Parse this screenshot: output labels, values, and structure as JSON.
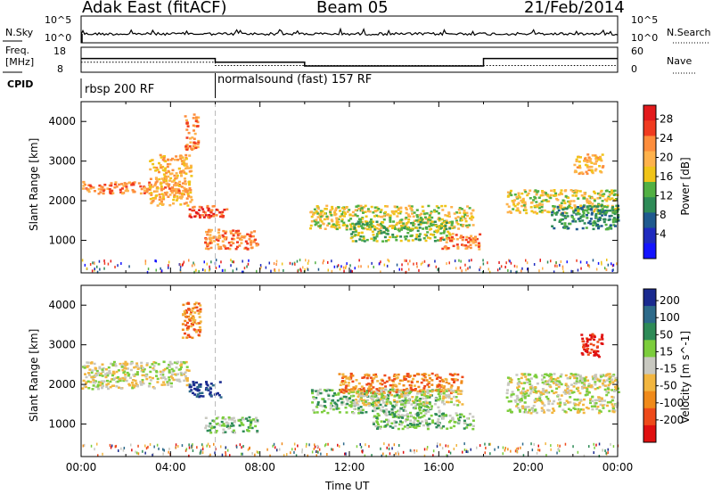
{
  "header": {
    "radar": "Adak East (fitACF)",
    "beam": "Beam 05",
    "date": "21/Feb/2014"
  },
  "top_panels": {
    "nsky_label": "N.Sky",
    "nsky_ticks": [
      "10^5",
      "10^0"
    ],
    "nsky_right_ticks": [
      "10^5",
      "10^0"
    ],
    "nsearch_label": "N.Search",
    "freq_label_line1": "Freq.",
    "freq_label_line2": "[MHz]",
    "freq_ticks": [
      "18",
      "8"
    ],
    "nave_ticks": [
      "60",
      "0"
    ],
    "nave_label": "Nave",
    "cpid_label": "CPID",
    "cpid_segments": [
      {
        "start": 0,
        "end": 6,
        "label": "rbsp 200 RF"
      },
      {
        "start": 6,
        "end": 24,
        "label": "normalsound (fast) 157 RF"
      }
    ],
    "freq_series": [
      {
        "start": 0,
        "end": 6,
        "value": 13.5
      },
      {
        "start": 6,
        "end": 10,
        "value": 12.0
      },
      {
        "start": 10,
        "end": 18,
        "value": 10.5
      },
      {
        "start": 18,
        "end": 24,
        "value": 13.5
      }
    ],
    "nave_series": [
      {
        "start": 0,
        "end": 6,
        "value": 24
      },
      {
        "start": 6,
        "end": 24,
        "value": 16
      }
    ]
  },
  "chart_data": [
    {
      "type": "heatmap",
      "panel": "power",
      "ylabel": "Slant Range [km]",
      "xlabel": "Time UT",
      "ylim": [
        180,
        4500
      ],
      "yticks": [
        "4000",
        "3000",
        "2000",
        "1000"
      ],
      "colorbar_label": "Power [dB]",
      "colorbar_ticks": [
        "28",
        "24",
        "20",
        "16",
        "12",
        "8",
        "4"
      ],
      "colorbar_colors": [
        "#e31a1c",
        "#f03b20",
        "#fd8d3c",
        "#feb24c",
        "#f0c419",
        "#52b043",
        "#2e8b57",
        "#1f5a8f",
        "#1f2bbf",
        "#1414ff"
      ],
      "echo_regions": [
        {
          "t0": 0.0,
          "t1": 4.5,
          "r0": 2200,
          "r1": 2500,
          "level": 2
        },
        {
          "t0": 3.0,
          "t1": 4.9,
          "r0": 1900,
          "r1": 3200,
          "level": 3
        },
        {
          "t0": 4.6,
          "t1": 5.2,
          "r0": 3300,
          "r1": 4200,
          "level": 2
        },
        {
          "t0": 4.8,
          "t1": 6.5,
          "r0": 1600,
          "r1": 1900,
          "level": 1
        },
        {
          "t0": 5.5,
          "t1": 7.9,
          "r0": 800,
          "r1": 1300,
          "level": 2
        },
        {
          "t0": 10.2,
          "t1": 17.5,
          "r0": 1300,
          "r1": 1900,
          "level": 4
        },
        {
          "t0": 12.0,
          "t1": 16.5,
          "r0": 1000,
          "r1": 1500,
          "level": 5
        },
        {
          "t0": 16.0,
          "t1": 17.8,
          "r0": 800,
          "r1": 1200,
          "level": 2
        },
        {
          "t0": 19.0,
          "t1": 24.0,
          "r0": 1700,
          "r1": 2300,
          "level": 4
        },
        {
          "t0": 21.0,
          "t1": 24.0,
          "r0": 1300,
          "r1": 1900,
          "level": 6
        },
        {
          "t0": 22.0,
          "t1": 23.3,
          "r0": 2700,
          "r1": 3200,
          "level": 3
        }
      ]
    },
    {
      "type": "heatmap",
      "panel": "velocity",
      "ylabel": "Slant Range [km]",
      "xlabel": "Time UT",
      "ylim": [
        180,
        4500
      ],
      "yticks": [
        "4000",
        "3000",
        "2000",
        "1000"
      ],
      "colorbar_label": "Velocity [m s^-1]",
      "colorbar_ticks": [
        "200",
        "100",
        "50",
        "15",
        "-15",
        "-50",
        "-100",
        "-200"
      ],
      "colorbar_colors": [
        "#1a2a8f",
        "#2d6a8a",
        "#2e8b57",
        "#7ccd3c",
        "#c8c8c0",
        "#f2b640",
        "#f08a1a",
        "#ee4a1a",
        "#e01010"
      ],
      "echo_regions": [
        {
          "t0": 0.0,
          "t1": 4.8,
          "r0": 1900,
          "r1": 2600,
          "level": 4
        },
        {
          "t0": 4.5,
          "t1": 5.3,
          "r0": 3200,
          "r1": 4100,
          "level": 6
        },
        {
          "t0": 4.8,
          "t1": 6.2,
          "r0": 1700,
          "r1": 2100,
          "level": 0
        },
        {
          "t0": 5.5,
          "t1": 7.9,
          "r0": 800,
          "r1": 1200,
          "level": 3
        },
        {
          "t0": 10.2,
          "t1": 16.0,
          "r0": 1300,
          "r1": 1900,
          "level": 3
        },
        {
          "t0": 11.5,
          "t1": 17.0,
          "r0": 1800,
          "r1": 2300,
          "level": 6
        },
        {
          "t0": 12.0,
          "t1": 17.0,
          "r0": 1500,
          "r1": 1900,
          "level": 4
        },
        {
          "t0": 13.0,
          "t1": 17.5,
          "r0": 900,
          "r1": 1300,
          "level": 3
        },
        {
          "t0": 19.0,
          "t1": 24.0,
          "r0": 1300,
          "r1": 2300,
          "level": 4
        },
        {
          "t0": 22.3,
          "t1": 23.3,
          "r0": 2700,
          "r1": 3300,
          "level": 8
        }
      ]
    }
  ],
  "x_axis": {
    "ticks": [
      "00:00",
      "04:00",
      "08:00",
      "12:00",
      "16:00",
      "20:00",
      "00:00"
    ],
    "label": "Time UT"
  }
}
